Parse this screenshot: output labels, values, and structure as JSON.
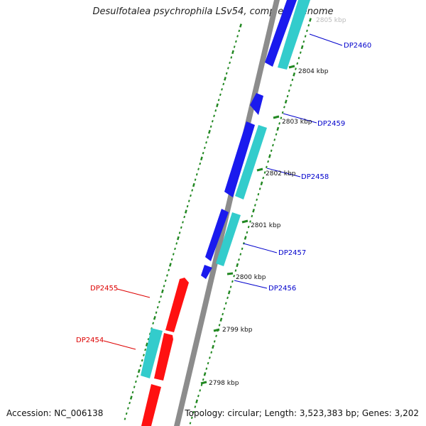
{
  "title": "Desulfotalea psychrophila LSv54, complete genome",
  "footer": {
    "accession": "Accession: NC_006138",
    "summary": "Topology: circular; Length: 3,523,383 bp; Genes: 3,202"
  },
  "colors": {
    "backbone": "#8c8c8c",
    "cds_forward": "#0000ee",
    "cds_forward_alt": "#33cccc",
    "cds_reverse": "#ff0000",
    "cds_reverse_alt": "#33cccc",
    "tick": "#228822",
    "label_forward": "#0000cc",
    "label_reverse": "#dd0000"
  },
  "scale_ticks": [
    {
      "label": "2798 kbp"
    },
    {
      "label": "2799 kbp"
    },
    {
      "label": "2800 kbp"
    },
    {
      "label": "2801 kbp"
    },
    {
      "label": "2802 kbp"
    },
    {
      "label": "2803 kbp"
    },
    {
      "label": "2804 kbp"
    },
    {
      "label": "2805 kbp"
    }
  ],
  "gene_labels": [
    {
      "name": "DP2460",
      "strand": "forward"
    },
    {
      "name": "DP2459",
      "strand": "forward"
    },
    {
      "name": "DP2458",
      "strand": "forward"
    },
    {
      "name": "DP2457",
      "strand": "forward"
    },
    {
      "name": "DP2456",
      "strand": "forward"
    },
    {
      "name": "DP2455",
      "strand": "reverse"
    },
    {
      "name": "DP2454",
      "strand": "reverse"
    }
  ]
}
